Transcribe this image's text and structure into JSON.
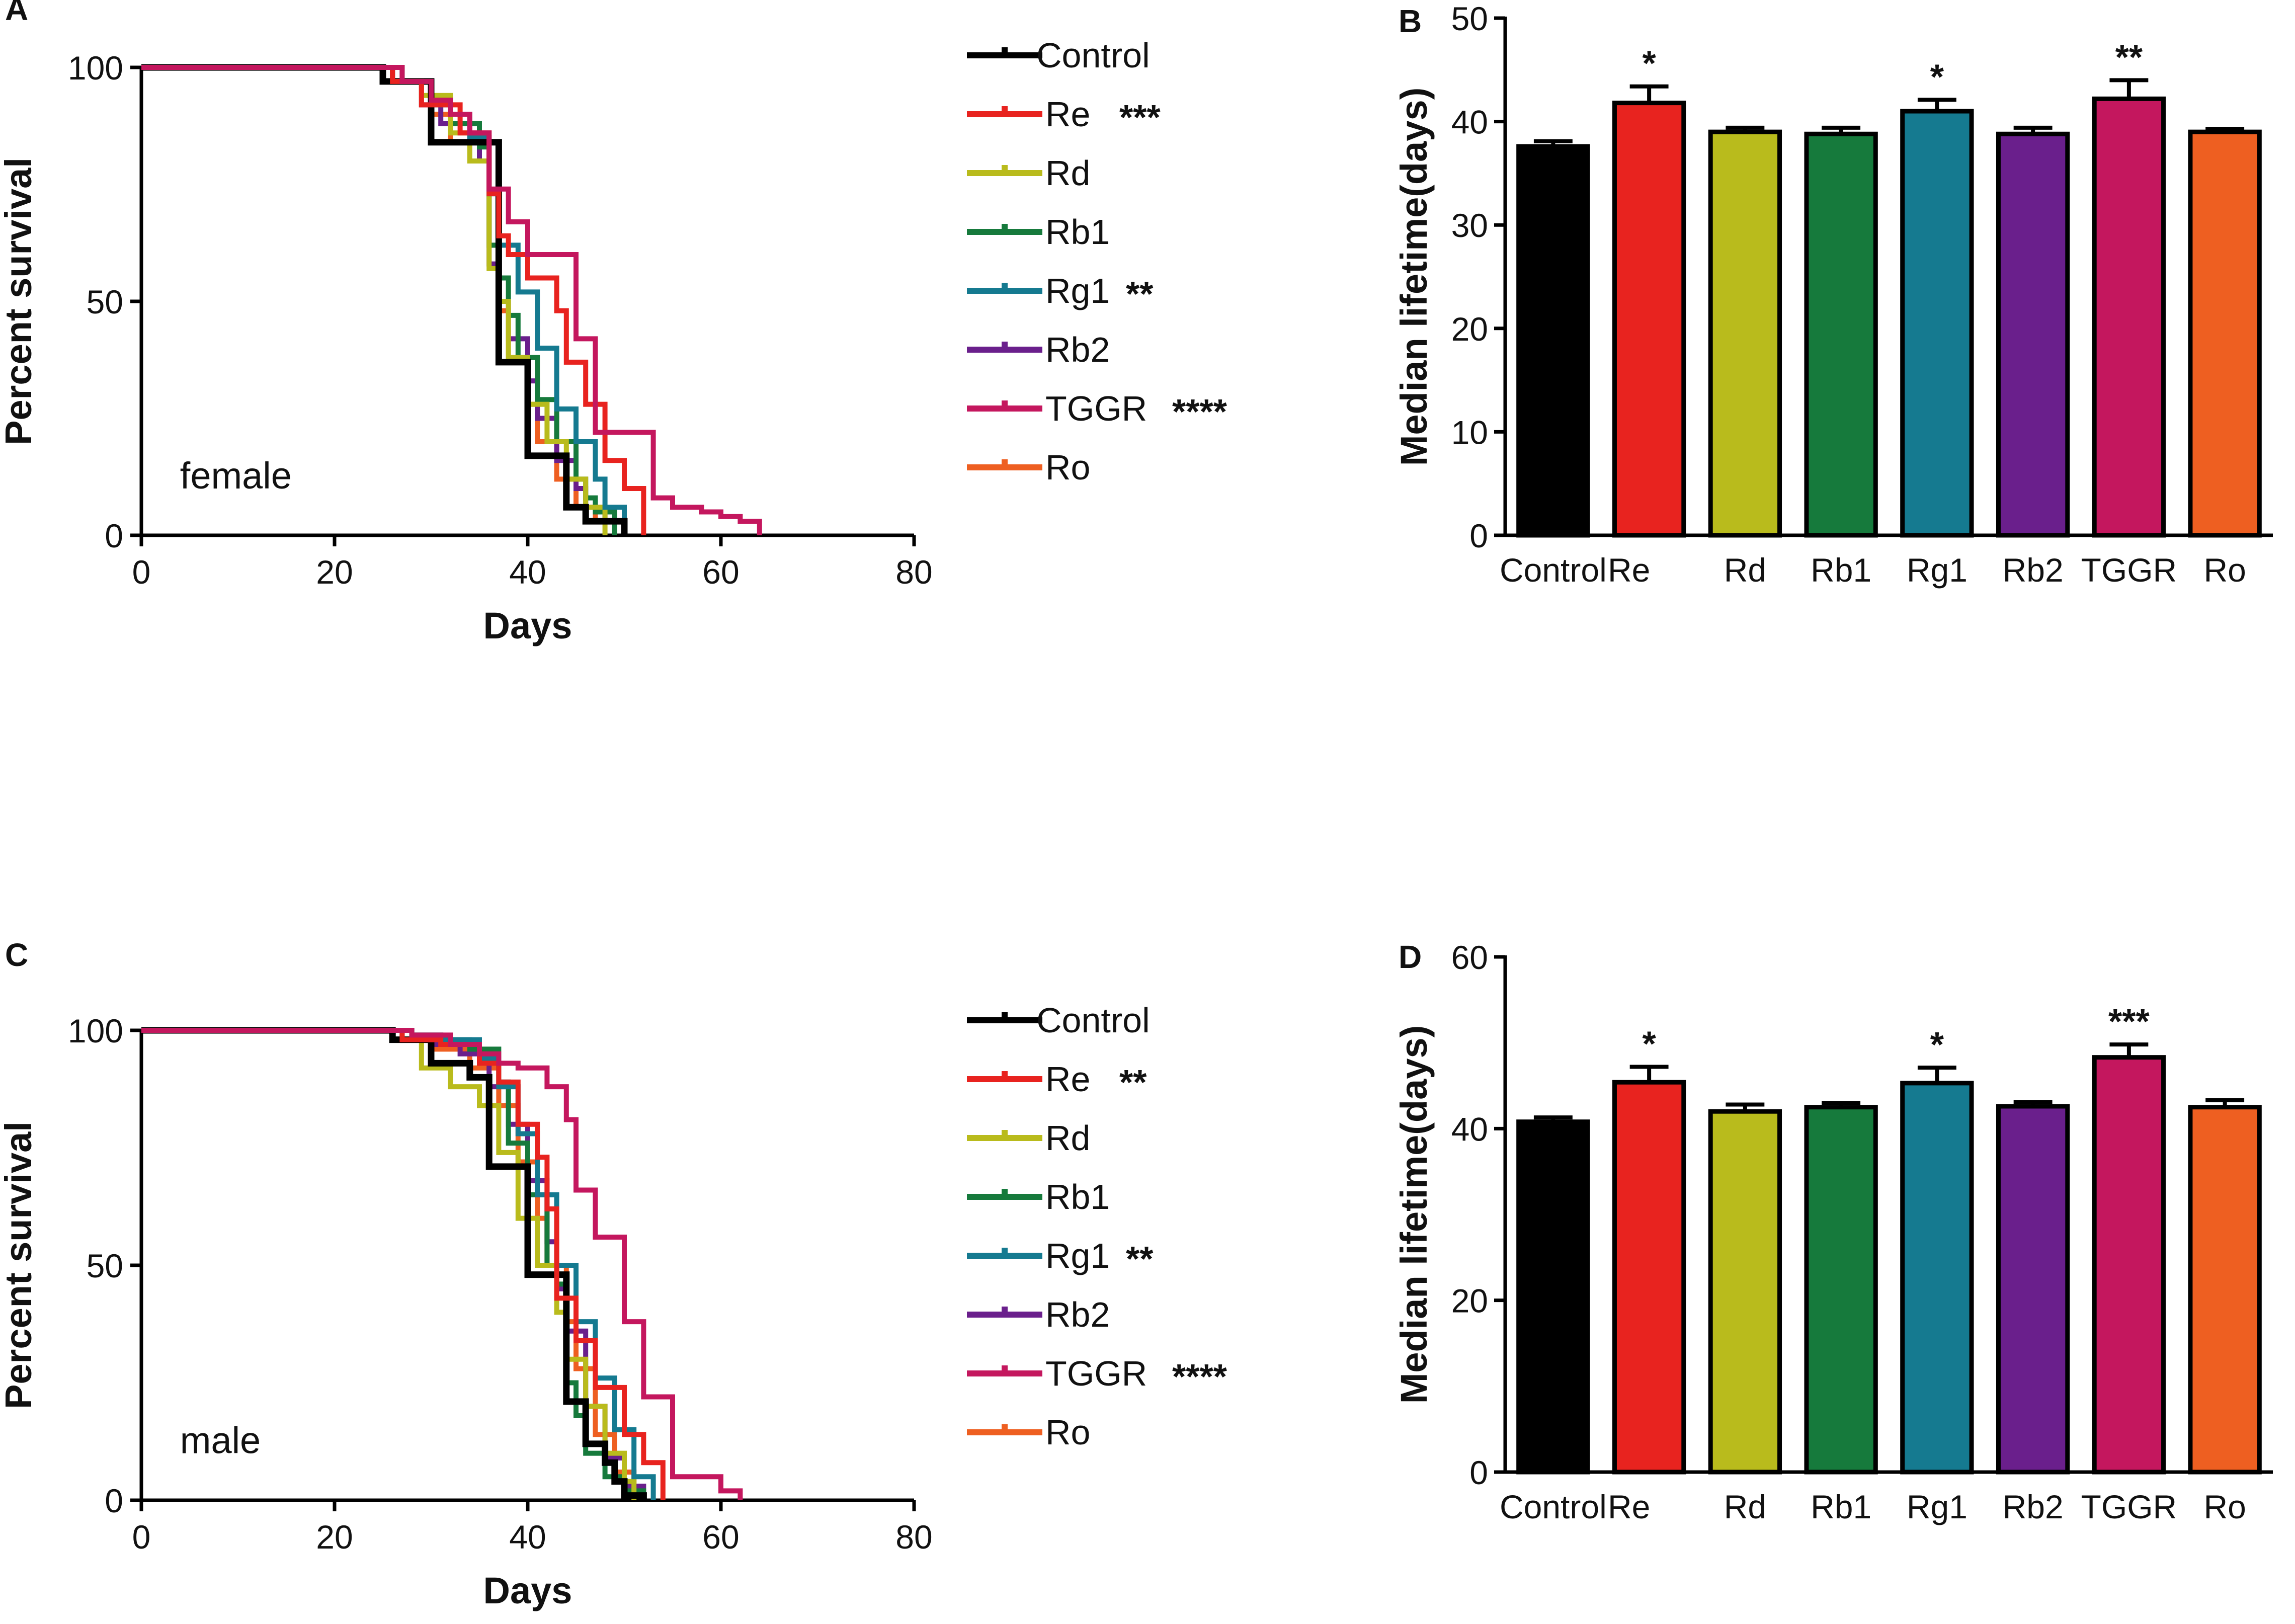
{
  "panels": {
    "A": "A",
    "B": "B",
    "C": "C",
    "D": "D"
  },
  "colors": {
    "Control": "#000000",
    "Re": "#e8231f",
    "Rd": "#b9bb1c",
    "Rb1": "#167a3c",
    "Rg1": "#157a90",
    "Rb2": "#6a1f8c",
    "TGGR": "#c4175e",
    "Ro": "#ee5f21"
  },
  "chart_data": [
    {
      "id": "A",
      "type": "line",
      "subtype": "kaplan-meier",
      "title": "",
      "xlabel": "Days",
      "ylabel": "Percent survival",
      "xlim": [
        0,
        80
      ],
      "ylim": [
        0,
        100
      ],
      "xticks": [
        "0",
        "20",
        "40",
        "60",
        "80"
      ],
      "yticks": [
        "0",
        "50",
        "100"
      ],
      "annotation": "female",
      "legend": [
        {
          "name": "Control",
          "sig": ""
        },
        {
          "name": "Re",
          "sig": "***"
        },
        {
          "name": "Rd",
          "sig": ""
        },
        {
          "name": "Rb1",
          "sig": ""
        },
        {
          "name": "Rg1",
          "sig": "**"
        },
        {
          "name": "Rb2",
          "sig": ""
        },
        {
          "name": "TGGR",
          "sig": "****"
        },
        {
          "name": "Ro",
          "sig": ""
        }
      ],
      "series": [
        {
          "name": "Ro",
          "x": [
            0,
            26,
            30,
            32,
            36,
            37,
            38,
            40,
            41,
            43,
            45,
            47,
            49
          ],
          "y": [
            100,
            97,
            90,
            84,
            62,
            48,
            38,
            28,
            20,
            12,
            6,
            3,
            0
          ]
        },
        {
          "name": "Rb2",
          "x": [
            0,
            26,
            29,
            31,
            35,
            36,
            37,
            38,
            40,
            41,
            43,
            45,
            46,
            48,
            50
          ],
          "y": [
            100,
            97,
            92,
            88,
            80,
            58,
            50,
            42,
            33,
            25,
            16,
            10,
            6,
            3,
            0
          ]
        },
        {
          "name": "Rb1",
          "x": [
            0,
            27,
            30,
            32,
            35,
            36,
            37,
            38,
            39,
            41,
            43,
            45,
            46,
            47,
            49
          ],
          "y": [
            100,
            97,
            92,
            88,
            83,
            62,
            55,
            47,
            38,
            29,
            20,
            12,
            8,
            5,
            0
          ]
        },
        {
          "name": "Rd",
          "x": [
            0,
            26,
            29,
            32,
            34,
            36,
            37,
            38,
            40,
            42,
            44,
            46,
            48
          ],
          "y": [
            100,
            97,
            94,
            86,
            80,
            57,
            50,
            38,
            28,
            20,
            12,
            6,
            0
          ]
        },
        {
          "name": "Rg1",
          "x": [
            0,
            26,
            30,
            32,
            34,
            36,
            37,
            39,
            41,
            43,
            45,
            47,
            48,
            50
          ],
          "y": [
            100,
            97,
            92,
            90,
            85,
            73,
            62,
            52,
            40,
            27,
            20,
            12,
            6,
            0
          ]
        },
        {
          "name": "Control",
          "x": [
            0,
            25,
            30,
            36,
            37,
            40,
            41,
            44,
            46,
            48,
            50
          ],
          "y": [
            100,
            97,
            84,
            84,
            37,
            17,
            17,
            6,
            3,
            3,
            0
          ]
        },
        {
          "name": "Re",
          "x": [
            0,
            26,
            29,
            33,
            36,
            37,
            38,
            40,
            43,
            44,
            46,
            48,
            50,
            52
          ],
          "y": [
            100,
            97,
            92,
            86,
            73,
            64,
            60,
            55,
            48,
            37,
            28,
            16,
            10,
            0
          ]
        },
        {
          "name": "TGGR",
          "x": [
            0,
            27,
            30,
            32,
            34,
            36,
            38,
            40,
            42,
            45,
            47,
            49,
            53,
            55,
            58,
            60,
            62,
            64
          ],
          "y": [
            100,
            97,
            93,
            90,
            86,
            74,
            67,
            60,
            60,
            42,
            22,
            22,
            8,
            6,
            5,
            4,
            3,
            0
          ]
        }
      ]
    },
    {
      "id": "B",
      "type": "bar",
      "title": "",
      "xlabel": "",
      "ylabel": "Median lifetime(days)",
      "ylim": [
        0,
        50
      ],
      "yticks": [
        "0",
        "10",
        "20",
        "30",
        "40",
        "50"
      ],
      "categories": [
        "Control",
        "Re",
        "Rd",
        "Rb1",
        "Rg1",
        "Rb2",
        "TGGR",
        "Ro"
      ],
      "values": [
        37.6,
        41.8,
        39.0,
        38.8,
        41.0,
        38.8,
        42.2,
        39.0
      ],
      "errors": [
        0.5,
        1.6,
        0.4,
        0.6,
        1.1,
        0.6,
        1.8,
        0.3
      ],
      "significance": [
        "",
        "*",
        "",
        "",
        "*",
        "",
        "**",
        ""
      ]
    },
    {
      "id": "C",
      "type": "line",
      "subtype": "kaplan-meier",
      "title": "",
      "xlabel": "Days",
      "ylabel": "Percent survival",
      "xlim": [
        0,
        80
      ],
      "ylim": [
        0,
        100
      ],
      "xticks": [
        "0",
        "20",
        "40",
        "60",
        "80"
      ],
      "yticks": [
        "0",
        "50",
        "100"
      ],
      "annotation": "male",
      "legend": [
        {
          "name": "Control",
          "sig": ""
        },
        {
          "name": "Re",
          "sig": "**"
        },
        {
          "name": "Rd",
          "sig": ""
        },
        {
          "name": "Rb1",
          "sig": ""
        },
        {
          "name": "Rg1",
          "sig": "**"
        },
        {
          "name": "Rb2",
          "sig": ""
        },
        {
          "name": "TGGR",
          "sig": "****"
        },
        {
          "name": "Ro",
          "sig": ""
        }
      ],
      "series": [
        {
          "name": "Ro",
          "x": [
            0,
            27,
            30,
            34,
            37,
            39,
            41,
            42,
            44,
            45,
            47,
            49,
            51,
            52
          ],
          "y": [
            100,
            98,
            96,
            92,
            84,
            72,
            60,
            50,
            38,
            28,
            14,
            6,
            2,
            0
          ]
        },
        {
          "name": "Rb2",
          "x": [
            0,
            27,
            30,
            33,
            36,
            38,
            40,
            42,
            43,
            44,
            46,
            48,
            50,
            52
          ],
          "y": [
            100,
            98,
            97,
            95,
            88,
            80,
            68,
            55,
            45,
            36,
            20,
            9,
            3,
            0
          ]
        },
        {
          "name": "Rb1",
          "x": [
            0,
            28,
            31,
            34,
            37,
            38,
            40,
            42,
            43,
            44,
            45,
            46,
            48,
            50,
            52
          ],
          "y": [
            100,
            99,
            98,
            96,
            89,
            76,
            65,
            50,
            46,
            25,
            18,
            10,
            5,
            2,
            0
          ]
        },
        {
          "name": "Rd",
          "x": [
            0,
            26,
            29,
            32,
            35,
            37,
            39,
            41,
            43,
            44,
            46,
            48,
            50,
            51
          ],
          "y": [
            100,
            98,
            92,
            88,
            84,
            74,
            60,
            50,
            40,
            30,
            20,
            10,
            4,
            0
          ]
        },
        {
          "name": "Rg1",
          "x": [
            0,
            28,
            31,
            35,
            37,
            39,
            41,
            43,
            45,
            47,
            49,
            51,
            53
          ],
          "y": [
            100,
            99,
            98,
            94,
            88,
            78,
            65,
            50,
            38,
            26,
            15,
            5,
            0
          ]
        },
        {
          "name": "Control",
          "x": [
            0,
            26,
            30,
            34,
            36,
            40,
            44,
            46,
            48,
            49,
            50,
            52
          ],
          "y": [
            100,
            98,
            93,
            90,
            71,
            48,
            21,
            12,
            8,
            4,
            1,
            0
          ]
        },
        {
          "name": "Re",
          "x": [
            0,
            27,
            31,
            35,
            37,
            39,
            41,
            42,
            43,
            45,
            47,
            50,
            52,
            54
          ],
          "y": [
            100,
            98,
            97,
            93,
            89,
            80,
            73,
            62,
            43,
            34,
            24,
            14,
            8,
            0
          ]
        },
        {
          "name": "TGGR",
          "x": [
            0,
            28,
            32,
            35,
            37,
            39,
            42,
            44,
            45,
            47,
            50,
            52,
            55,
            58,
            60,
            62
          ],
          "y": [
            100,
            99,
            97,
            95,
            93,
            92,
            88,
            81,
            66,
            56,
            38,
            22,
            5,
            5,
            2,
            0
          ]
        }
      ]
    },
    {
      "id": "D",
      "type": "bar",
      "title": "",
      "xlabel": "",
      "ylabel": "Median lifetime(days)",
      "ylim": [
        0,
        60
      ],
      "yticks": [
        "0",
        "20",
        "40",
        "60"
      ],
      "categories": [
        "Control",
        "Re",
        "Rd",
        "Rb1",
        "Rg1",
        "Rb2",
        "TGGR",
        "Ro"
      ],
      "values": [
        40.8,
        45.4,
        42.0,
        42.5,
        45.3,
        42.6,
        48.3,
        42.5
      ],
      "errors": [
        0.5,
        1.8,
        0.8,
        0.5,
        1.8,
        0.5,
        1.5,
        0.8
      ],
      "significance": [
        "",
        "*",
        "",
        "",
        "*",
        "",
        "***",
        ""
      ]
    }
  ]
}
